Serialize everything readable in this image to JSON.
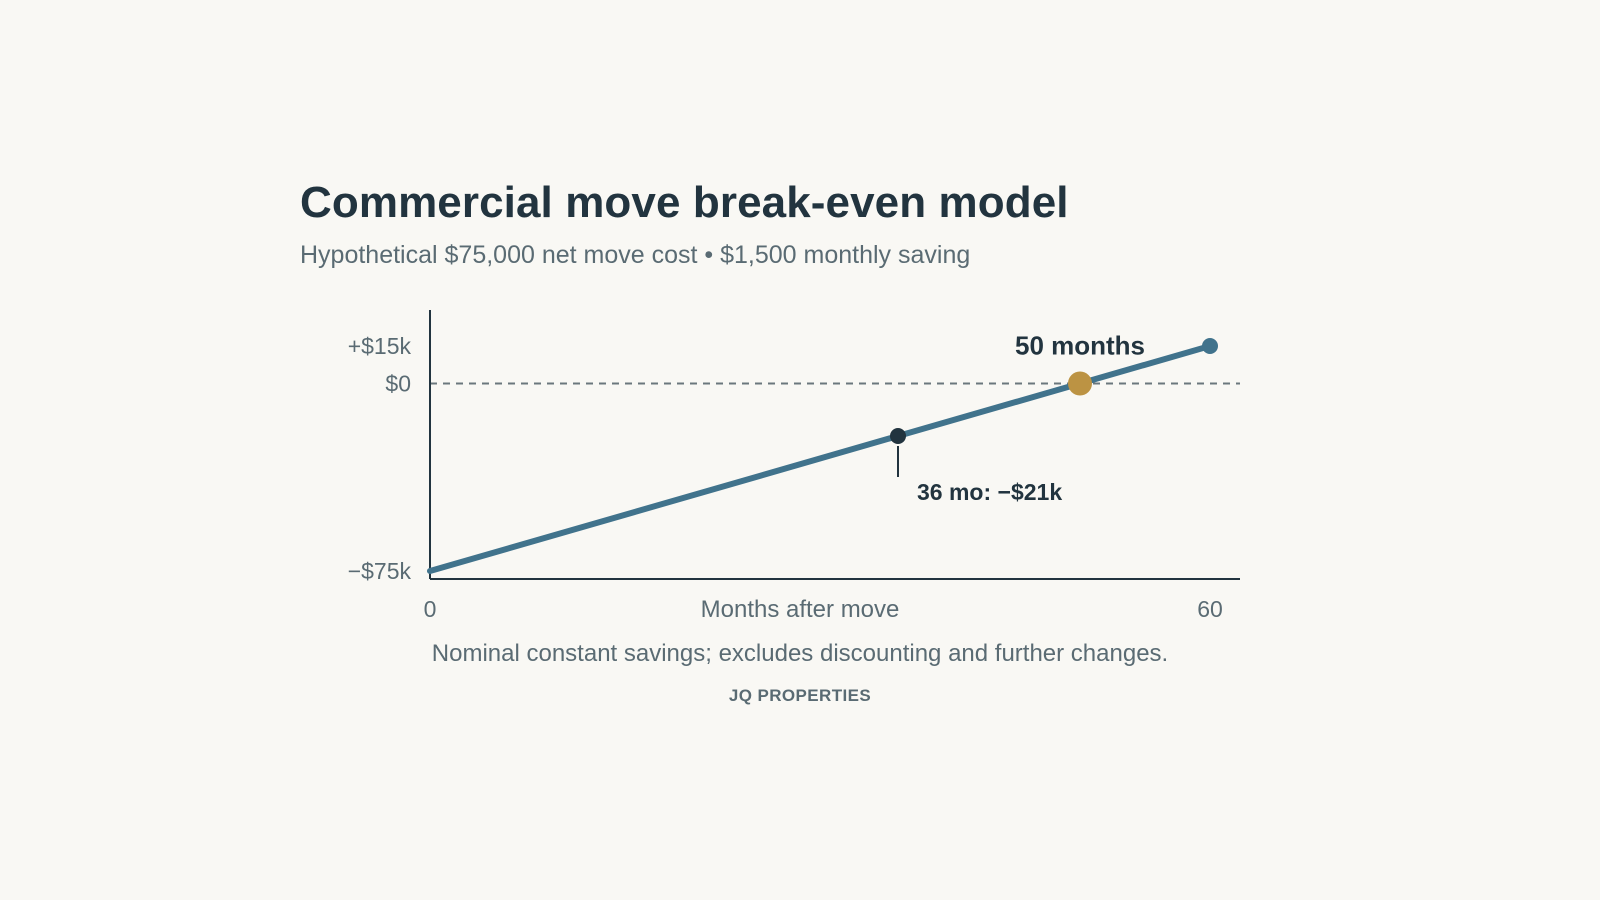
{
  "header": {
    "title": "Commercial move break-even model",
    "subtitle": "Hypothetical $75,000 net move cost • $1,500 monthly saving"
  },
  "chart_data": {
    "type": "line",
    "title": "Commercial move break-even model",
    "subtitle": "Hypothetical $75,000 net move cost • $1,500 monthly saving",
    "xlabel": "Months after move",
    "ylabel": "",
    "xlim": [
      0,
      60
    ],
    "ylim": [
      -75000,
      15000
    ],
    "x_ticks": [
      {
        "value": 0,
        "label": "0"
      },
      {
        "value": 60,
        "label": "60"
      }
    ],
    "y_ticks": [
      {
        "value": 15000,
        "label": "+$15k"
      },
      {
        "value": 0,
        "label": "$0"
      },
      {
        "value": -75000,
        "label": "−$75k"
      }
    ],
    "series": [
      {
        "x": [
          0,
          36,
          50,
          60
        ],
        "y": [
          -75000,
          -21000,
          0,
          15000
        ],
        "color": "#41738c"
      }
    ],
    "reference_line": {
      "y": 0,
      "style": "dashed",
      "color": "#6b777d"
    },
    "markers": [
      {
        "x": 36,
        "y": -21000,
        "color": "#22343f",
        "label": "36 mo: −$21k"
      },
      {
        "x": 50,
        "y": 0,
        "color": "#bc9343",
        "label": "50 months"
      },
      {
        "x": 60,
        "y": 15000,
        "color": "#41738c",
        "label": ""
      }
    ],
    "grid": false,
    "legend": "none"
  },
  "footer": {
    "note": "Nominal constant savings; excludes discounting and further changes.",
    "brand": "JQ PROPERTIES"
  },
  "colors": {
    "background": "#f9f8f4",
    "text_dark": "#22343f",
    "text_muted": "#5a6b73",
    "line": "#41738c",
    "breakeven": "#bc9343",
    "axis": "#22343f"
  }
}
